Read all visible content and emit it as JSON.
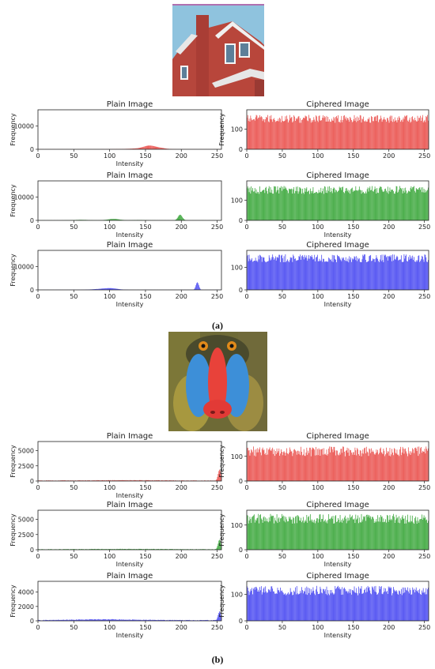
{
  "panels": [
    {
      "label": "(a)",
      "image_name": "house-photo",
      "chart_data": [
        {
          "type": "bar",
          "title": "Plain Image",
          "xlabel": "Intensity",
          "ylabel": "Frequency",
          "xlim": [
            0,
            255
          ],
          "ylim": [
            0,
            17000
          ],
          "xticks": [
            0,
            50,
            100,
            150,
            200,
            250
          ],
          "yticks": [
            0,
            10000
          ],
          "color": "#e8433f",
          "series": [
            {
              "kind": "peaks",
              "floor": 30,
              "peaks": [
                [
                  155,
                  1400,
                  8
                ],
                [
                  170,
                  500,
                  8
                ],
                [
                  140,
                  250,
                  10
                ],
                [
                  120,
                  120,
                  15
                ]
              ]
            }
          ]
        },
        {
          "type": "bar",
          "title": "Ciphered Image",
          "xlabel": "",
          "ylabel": "Frequency",
          "xlim": [
            0,
            255
          ],
          "ylim": [
            0,
            195
          ],
          "xticks": [
            0,
            50,
            100,
            150,
            200,
            250
          ],
          "yticks": [
            0,
            100
          ],
          "color": "#e8433f",
          "series": [
            {
              "kind": "uniform",
              "mean": 150,
              "spread": 20
            }
          ]
        },
        {
          "type": "bar",
          "title": "Plain Image",
          "xlabel": "Intensity",
          "ylabel": "Frequency",
          "xlim": [
            0,
            255
          ],
          "ylim": [
            0,
            17000
          ],
          "xticks": [
            0,
            50,
            100,
            150,
            200,
            250
          ],
          "yticks": [
            0,
            10000
          ],
          "color": "#2ca02c",
          "series": [
            {
              "kind": "peaks",
              "floor": 40,
              "peaks": [
                [
                  198,
                  2400,
                  3
                ],
                [
                  105,
                  600,
                  8
                ],
                [
                  60,
                  200,
                  10
                ],
                [
                  140,
                  150,
                  10
                ]
              ]
            }
          ]
        },
        {
          "type": "bar",
          "title": "Ciphered Image",
          "xlabel": "Intensity",
          "ylabel": "",
          "xlim": [
            0,
            255
          ],
          "ylim": [
            0,
            195
          ],
          "xticks": [
            0,
            50,
            100,
            150,
            200,
            250
          ],
          "yticks": [
            0,
            100
          ],
          "color": "#2ca02c",
          "series": [
            {
              "kind": "uniform",
              "mean": 150,
              "spread": 20
            }
          ]
        },
        {
          "type": "bar",
          "title": "Plain Image",
          "xlabel": "Intensity",
          "ylabel": "Frequency",
          "xlim": [
            0,
            255
          ],
          "ylim": [
            0,
            17000
          ],
          "xticks": [
            0,
            50,
            100,
            150,
            200,
            250
          ],
          "yticks": [
            0,
            10000
          ],
          "color": "#3b3bf0",
          "series": [
            {
              "kind": "peaks",
              "floor": 40,
              "peaks": [
                [
                  222,
                  3200,
                  2
                ],
                [
                  100,
                  700,
                  10
                ],
                [
                  80,
                  200,
                  10
                ]
              ]
            }
          ]
        },
        {
          "type": "bar",
          "title": "Ciphered Image",
          "xlabel": "Intensity",
          "ylabel": "",
          "xlim": [
            0,
            255
          ],
          "ylim": [
            0,
            175
          ],
          "xticks": [
            0,
            50,
            100,
            150,
            200,
            250
          ],
          "yticks": [
            0,
            100
          ],
          "color": "#3b3bf0",
          "series": [
            {
              "kind": "uniform",
              "mean": 140,
              "spread": 18
            }
          ]
        }
      ]
    },
    {
      "label": "(b)",
      "image_name": "baboon-photo",
      "chart_data": [
        {
          "type": "bar",
          "title": "Plain Image",
          "xlabel": "Intensity",
          "ylabel": "Frequency",
          "xlim": [
            0,
            255
          ],
          "ylim": [
            0,
            6500
          ],
          "xticks": [
            0,
            50,
            100,
            150,
            200,
            250
          ],
          "yticks": [
            0,
            2500,
            5000
          ],
          "color": "#e8433f",
          "series": [
            {
              "kind": "peaks",
              "floor": 70,
              "peaks": [
                [
                  253,
                  1800,
                  2
                ],
                [
                  120,
                  60,
                  60
                ]
              ]
            }
          ]
        },
        {
          "type": "bar",
          "title": "Ciphered Image",
          "xlabel": "",
          "ylabel": "Frequency",
          "xlim": [
            0,
            255
          ],
          "ylim": [
            0,
            160
          ],
          "xticks": [
            0,
            50,
            100,
            150,
            200,
            250
          ],
          "yticks": [
            0,
            100
          ],
          "color": "#e8433f",
          "series": [
            {
              "kind": "uniform",
              "mean": 120,
              "spread": 20
            }
          ]
        },
        {
          "type": "bar",
          "title": "Plain Image",
          "xlabel": "Intensity",
          "ylabel": "Frequency",
          "xlim": [
            0,
            255
          ],
          "ylim": [
            0,
            6500
          ],
          "xticks": [
            0,
            50,
            100,
            150,
            200,
            250
          ],
          "yticks": [
            0,
            2500,
            5000
          ],
          "color": "#2ca02c",
          "series": [
            {
              "kind": "peaks",
              "floor": 70,
              "peaks": [
                [
                  253,
                  1600,
                  2
                ],
                [
                  120,
                  60,
                  60
                ]
              ]
            }
          ]
        },
        {
          "type": "bar",
          "title": "Ciphered Image",
          "xlabel": "Intensity",
          "ylabel": "Frequency",
          "xlim": [
            0,
            255
          ],
          "ylim": [
            0,
            160
          ],
          "xticks": [
            0,
            50,
            100,
            150,
            200,
            250
          ],
          "yticks": [
            0,
            100
          ],
          "color": "#2ca02c",
          "series": [
            {
              "kind": "uniform",
              "mean": 125,
              "spread": 20
            }
          ]
        },
        {
          "type": "bar",
          "title": "Plain Image",
          "xlabel": "Intensity",
          "ylabel": "Frequency",
          "xlim": [
            0,
            255
          ],
          "ylim": [
            0,
            5500
          ],
          "xticks": [
            0,
            50,
            100,
            150,
            200,
            250
          ],
          "yticks": [
            0,
            2000,
            4000
          ],
          "color": "#3b3bf0",
          "series": [
            {
              "kind": "peaks",
              "floor": 90,
              "peaks": [
                [
                  253,
                  1200,
                  2
                ],
                [
                  90,
                  120,
                  40
                ]
              ]
            }
          ]
        },
        {
          "type": "bar",
          "title": "Ciphered Image",
          "xlabel": "Intensity",
          "ylabel": "Frequency",
          "xlim": [
            0,
            255
          ],
          "ylim": [
            0,
            150
          ],
          "xticks": [
            0,
            50,
            100,
            150,
            200,
            250
          ],
          "yticks": [
            0,
            100
          ],
          "color": "#3b3bf0",
          "series": [
            {
              "kind": "uniform",
              "mean": 115,
              "spread": 18
            }
          ]
        }
      ]
    }
  ]
}
